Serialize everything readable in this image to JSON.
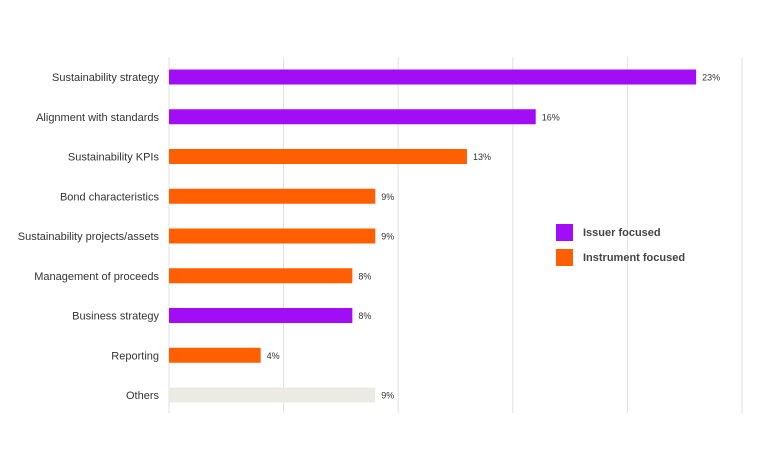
{
  "chart_data": {
    "type": "bar",
    "orientation": "horizontal",
    "categories": [
      "Sustainability strategy",
      "Alignment with standards",
      "Sustainability KPIs",
      "Bond characteristics",
      "Sustainability projects/assets",
      "Management of proceeds",
      "Business strategy",
      "Reporting",
      "Others"
    ],
    "values": [
      23,
      16,
      13,
      9,
      9,
      8,
      8,
      4,
      9
    ],
    "value_labels": [
      "23%",
      "16%",
      "13%",
      "9%",
      "9%",
      "8%",
      "8%",
      "4%",
      "9%"
    ],
    "groups": [
      "issuer",
      "issuer",
      "instrument",
      "instrument",
      "instrument",
      "instrument",
      "issuer",
      "instrument",
      "other"
    ],
    "xlim": [
      0,
      25
    ],
    "grid": "vertical",
    "legend_position": "right",
    "legend": [
      {
        "key": "issuer",
        "label": "Issuer focused"
      },
      {
        "key": "instrument",
        "label": "Instrument focused"
      }
    ],
    "title": "",
    "xlabel": "",
    "ylabel": ""
  },
  "colors": {
    "issuer": "#a10df5",
    "instrument": "#ff5f00",
    "other": "#ecebe3",
    "grid": "#e2e2e2",
    "text": "#333333"
  }
}
